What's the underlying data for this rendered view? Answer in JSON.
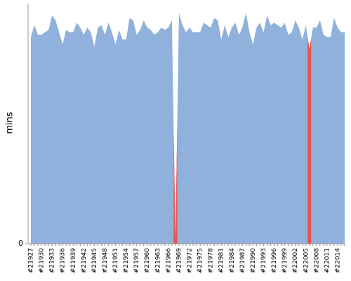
{
  "chart_data": {
    "type": "area",
    "y_label": "mins",
    "categories": [
      "#21927",
      null,
      null,
      "#21930",
      null,
      null,
      "#21933",
      null,
      null,
      "#21936",
      null,
      null,
      "#21939",
      null,
      null,
      "#21942",
      null,
      null,
      "#21945",
      null,
      null,
      "#21948",
      null,
      null,
      "#21951",
      null,
      null,
      "#21954",
      null,
      null,
      "#21957",
      null,
      null,
      "#21960",
      null,
      null,
      "#21963",
      null,
      null,
      "#21966",
      null,
      null,
      "#21969",
      null,
      null,
      "#21972",
      null,
      null,
      "#21975",
      null,
      null,
      "#21978",
      null,
      null,
      "#21981",
      null,
      null,
      "#21984",
      null,
      null,
      "#21987",
      null,
      null,
      "#21990",
      null,
      null,
      "#21993",
      null,
      null,
      "#21996",
      null,
      null,
      "#21999",
      null,
      null,
      "#22002",
      null,
      null,
      "#22005",
      null,
      null,
      "#22008",
      null,
      null,
      "#22011",
      null,
      null,
      "#22014",
      null,
      null
    ],
    "series": [
      {
        "color": "#8fb1dc",
        "values": [
          86,
          91,
          87,
          87,
          88,
          89,
          95,
          93,
          88,
          83,
          89,
          88,
          88,
          92,
          90,
          87,
          90,
          88,
          82,
          90,
          91,
          87,
          92,
          88,
          83,
          89,
          85,
          85,
          94,
          93,
          87,
          89,
          93,
          90,
          89,
          87,
          88,
          90,
          89,
          90,
          93,
          1,
          96,
          91,
          88,
          90,
          88,
          88,
          88,
          92,
          91,
          90,
          94,
          93,
          85,
          91,
          86,
          90,
          92,
          87,
          90,
          96,
          88,
          83,
          90,
          92,
          88,
          95,
          91,
          92,
          91,
          90,
          92,
          87,
          88,
          93,
          90,
          85,
          91,
          81,
          90,
          90,
          93,
          87,
          86,
          86,
          94,
          90,
          88,
          88
        ]
      }
    ],
    "failed": [
      41,
      79
    ],
    "failed_color": "#e8534f",
    "ylim": [
      0,
      100
    ],
    "yticks": [
      0
    ]
  }
}
